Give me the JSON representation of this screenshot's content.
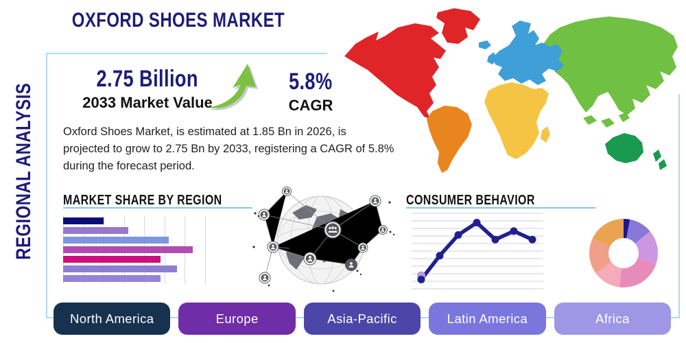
{
  "page": {
    "title": "OXFORD SHOES MARKET",
    "side_label": "REGIONAL ANALYSIS"
  },
  "stats": {
    "market_value": "2.75 Billion",
    "market_value_label": "2033 Market Value",
    "growth_arrow_icon": "growth-arrow-up-right",
    "cagr_value": "5.8%",
    "cagr_label": "CAGR"
  },
  "description": "Oxford Shoes Market, is estimated at 1.85 Bn in 2026, is\nprojected to grow to 2.75 Bn by 2033, registering a CAGR of 5.8%\nduring the forecast period.",
  "sections": {
    "market_share_title": "MARKET SHARE BY REGION",
    "consumer_behavior_title": "CONSUMER BEHAVIOR"
  },
  "chart_data": [
    {
      "id": "market-share-by-region",
      "type": "bar",
      "orientation": "horizontal",
      "title": "MARKET SHARE BY REGION",
      "values": [
        2.0,
        3.2,
        5.2,
        6.4,
        4.8,
        5.6,
        4.8
      ],
      "xlim": [
        0,
        7
      ],
      "grid": "vertical",
      "bar_colors": [
        "#0d0d78",
        "#9678cd",
        "#7d96dd",
        "#b04cb0",
        "#cc0e7e",
        "#8e7ed2",
        "#9483d6"
      ]
    },
    {
      "id": "consumer-behavior",
      "type": "line",
      "title": "CONSUMER BEHAVIOR",
      "x": [
        1,
        2,
        3,
        4,
        5,
        6,
        7
      ],
      "values": [
        13,
        44,
        71,
        87,
        65,
        76,
        65
      ],
      "ylim": [
        0,
        100
      ],
      "grid": "horizontal",
      "line_color": "#20208f",
      "first_point_highlight_color": "#b39ddb"
    },
    {
      "id": "regional-share-donut",
      "type": "pie",
      "donut": true,
      "values": [
        3,
        11,
        16,
        22,
        13,
        17,
        18
      ],
      "colors": [
        "#1c1690",
        "#8878d6",
        "#cc96e0",
        "#e78cba",
        "#f5abb9",
        "#f0a089",
        "#eaa351"
      ]
    }
  ],
  "map": {
    "regions": [
      {
        "name": "North America",
        "color": "#e02529"
      },
      {
        "name": "South America",
        "color": "#e8851f"
      },
      {
        "name": "Europe",
        "color": "#3f9fd8"
      },
      {
        "name": "Africa",
        "color": "#f6c445"
      },
      {
        "name": "Asia",
        "color": "#70c043"
      },
      {
        "name": "Oceania",
        "color": "#199a4e"
      }
    ]
  },
  "region_buttons": [
    {
      "label": "North America",
      "color": "#17324f"
    },
    {
      "label": "Europe",
      "color": "#6f2da8"
    },
    {
      "label": "Asia-Pacific",
      "color": "#4b46a8"
    },
    {
      "label": "Latin America",
      "color": "#7b76dd"
    },
    {
      "label": "Africa",
      "color": "#9e97e5"
    }
  ],
  "theme": {
    "heading_color": "#1c1c78",
    "frame_color": "#b0d9ec",
    "underline_color": "#8ac6e2",
    "arrow_green": "#7cc142",
    "text_color": "#1f1f1f"
  }
}
